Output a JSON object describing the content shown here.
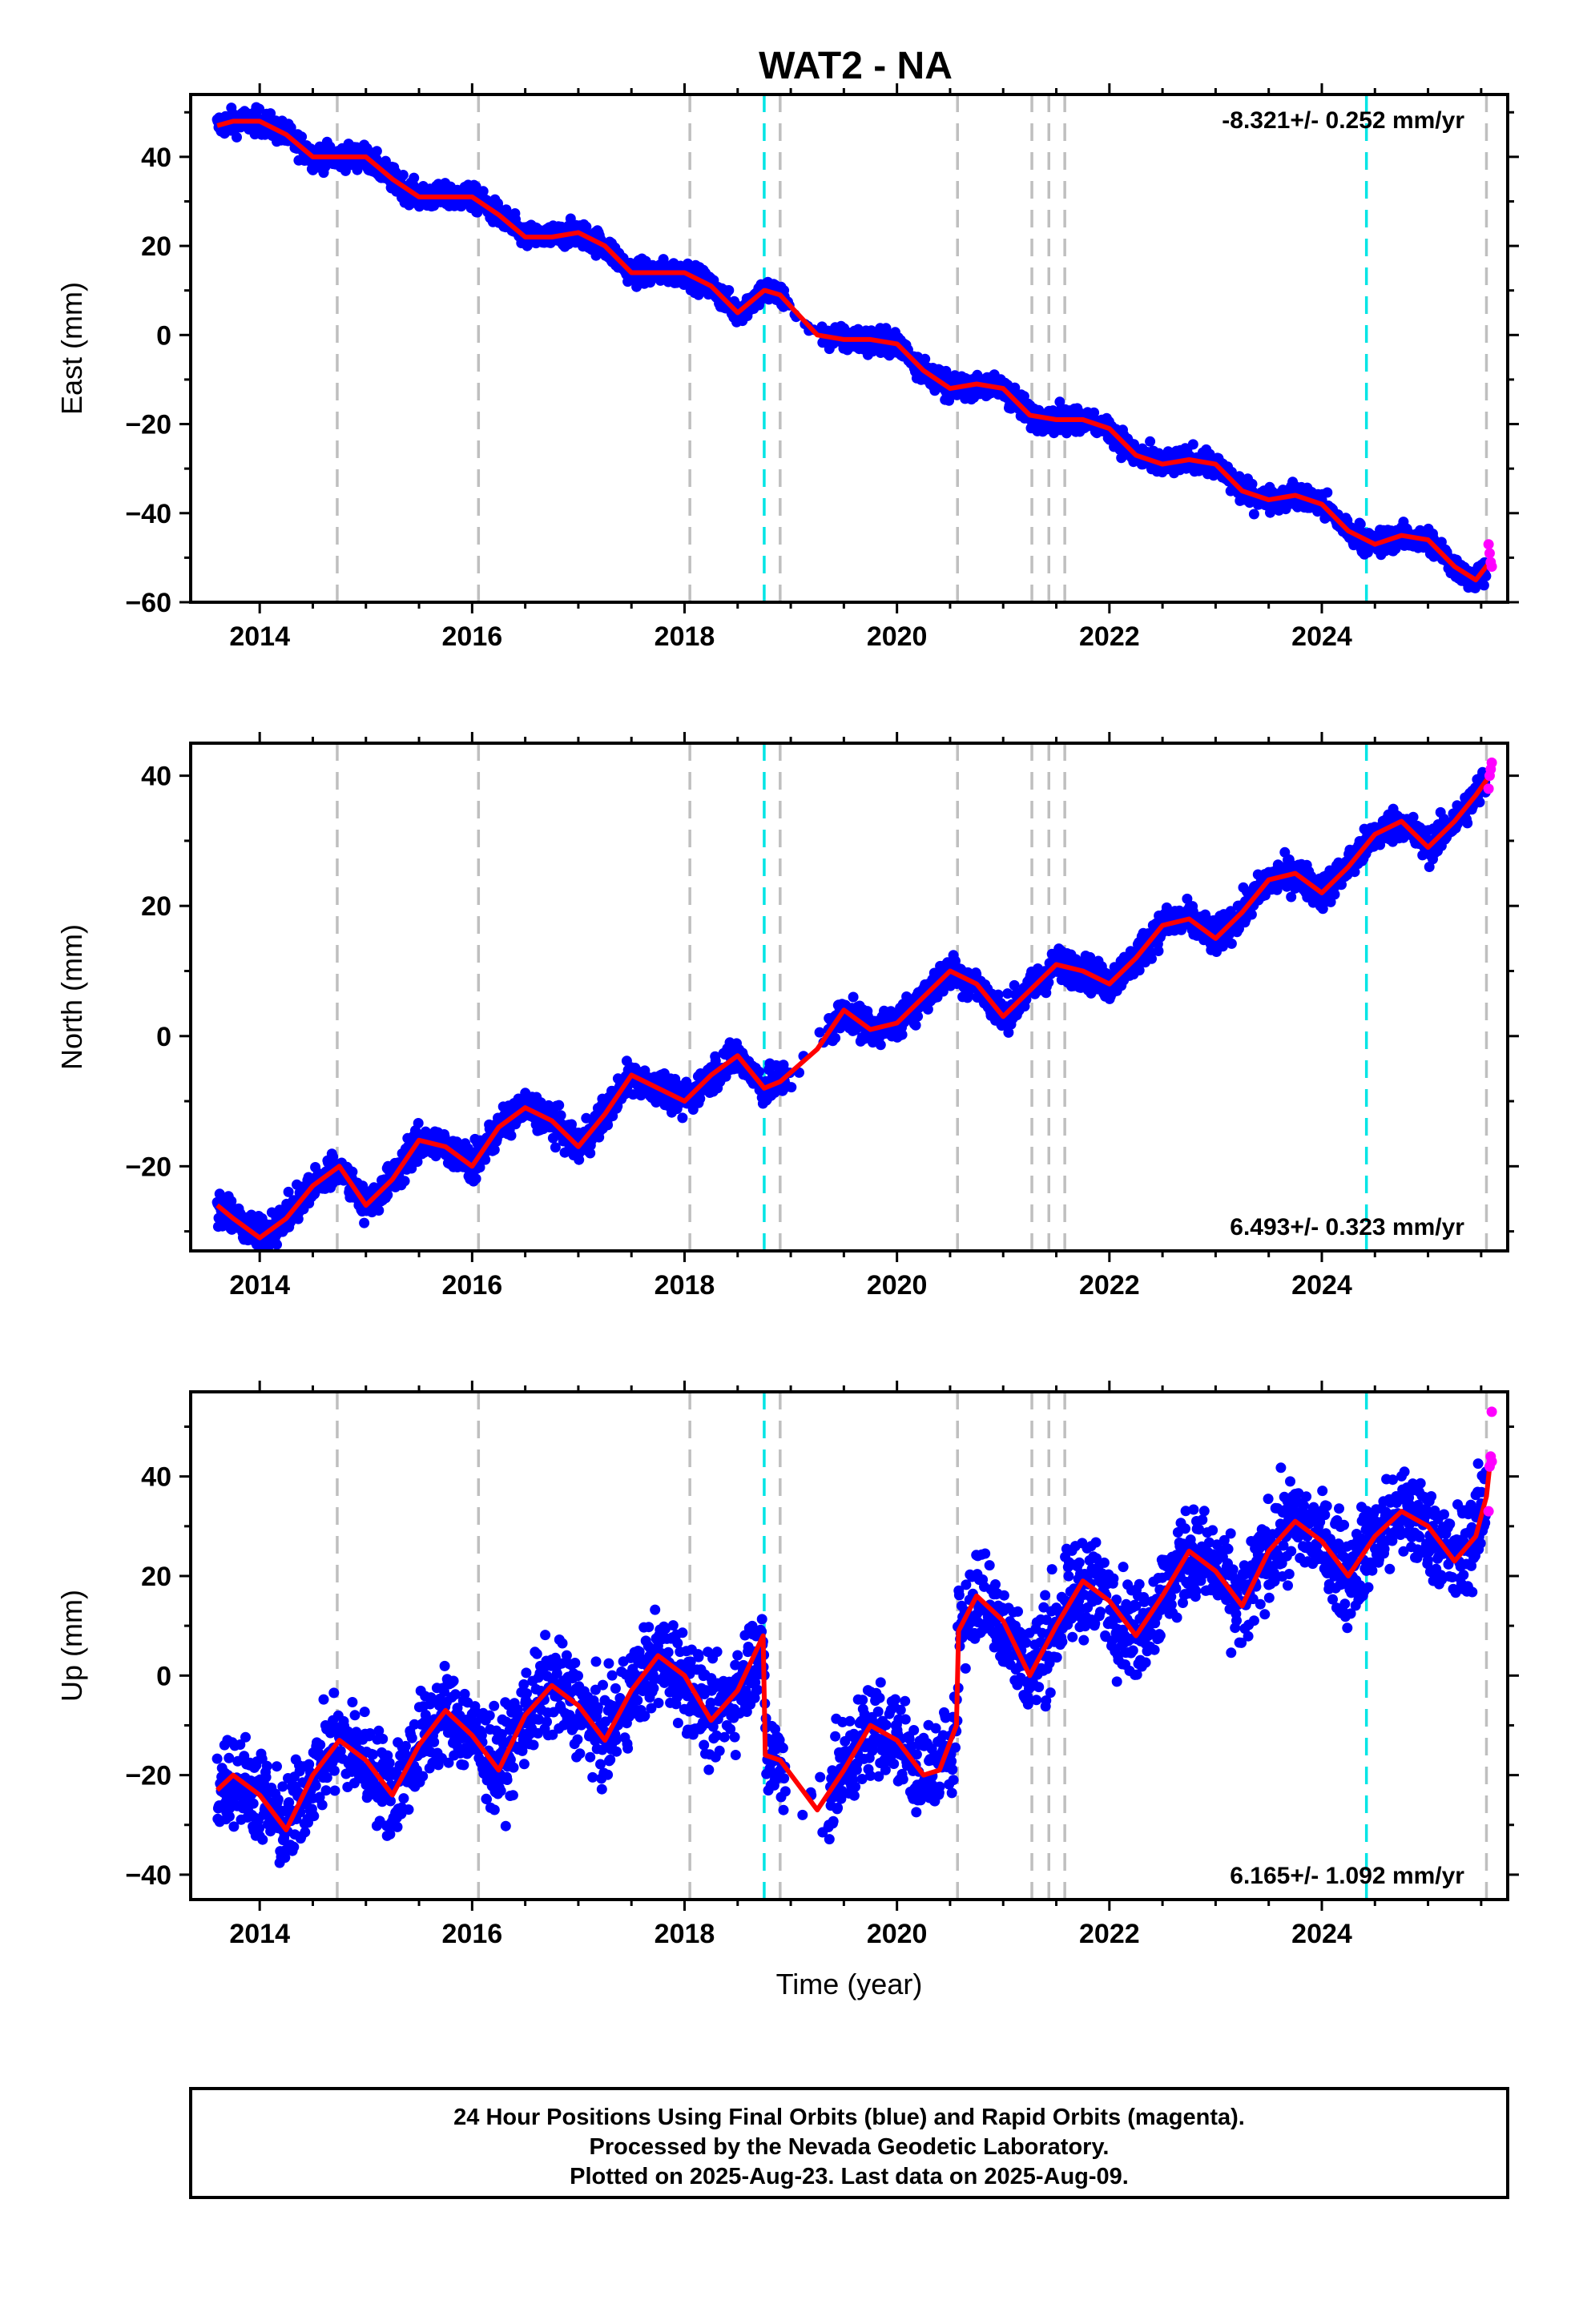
{
  "colors": {
    "final_orbits": "#0000ff",
    "rapid_orbits": "#ff00ff",
    "model_fit": "#ff0000",
    "equipment_change": "#bfbfbf",
    "earthquake": "#00e5e5"
  },
  "footer": {
    "line1": "24 Hour Positions Using Final Orbits (blue) and Rapid Orbits (magenta).",
    "line2": "Processed by the Nevada Geodetic Laboratory.",
    "line3": "Plotted on 2025-Aug-23. Last data on 2025-Aug-09."
  },
  "chart_data": [
    {
      "type": "scatter",
      "title": "WAT2 - NA",
      "xlabel": "",
      "ylabel": "East (mm)",
      "xlim": [
        2013.35,
        2025.75
      ],
      "ylim": [
        -60,
        54
      ],
      "xticks": [
        2014,
        2016,
        2018,
        2020,
        2022,
        2024
      ],
      "yticks": [
        -60,
        -40,
        -20,
        0,
        20,
        40
      ],
      "grid": false,
      "rate_text": "-8.321+/- 0.252 mm/yr",
      "rate_position": "top-right",
      "vlines_gray": [
        2014.73,
        2016.06,
        2018.05,
        2018.9,
        2020.57,
        2021.27,
        2021.43,
        2021.58,
        2025.55
      ],
      "vlines_cyan": [
        2018.75,
        2024.42
      ],
      "model": {
        "x": [
          2013.6,
          2013.75,
          2014.0,
          2014.25,
          2014.5,
          2014.75,
          2015.0,
          2015.25,
          2015.5,
          2015.75,
          2016.0,
          2016.25,
          2016.5,
          2016.75,
          2017.0,
          2017.25,
          2017.5,
          2017.75,
          2018.0,
          2018.25,
          2018.5,
          2018.75,
          2018.76,
          2018.9,
          2019.25,
          2019.5,
          2019.75,
          2020.0,
          2020.25,
          2020.5,
          2020.75,
          2021.0,
          2021.25,
          2021.5,
          2021.75,
          2022.0,
          2022.25,
          2022.5,
          2022.75,
          2023.0,
          2023.25,
          2023.5,
          2023.75,
          2024.0,
          2024.25,
          2024.5,
          2024.75,
          2025.0,
          2025.25,
          2025.45,
          2025.58
        ],
        "y": [
          47,
          48,
          48,
          45,
          40,
          40,
          40,
          35,
          31,
          31,
          31,
          27,
          22,
          22,
          23,
          20,
          14,
          14,
          14,
          11,
          5,
          10,
          10,
          9,
          0,
          -1,
          -1,
          -2,
          -8,
          -12,
          -11,
          -12,
          -18,
          -19,
          -19,
          -21,
          -27,
          -29,
          -28,
          -29,
          -35,
          -37,
          -36,
          -38,
          -44,
          -47,
          -45,
          -46,
          -52,
          -55,
          -51
        ]
      },
      "rapid_points": {
        "x": [
          2025.57,
          2025.58,
          2025.59,
          2025.6
        ],
        "y": [
          -47,
          -49,
          -51,
          -52
        ]
      },
      "scatter_spread": 1.6,
      "point_count": 2600
    },
    {
      "type": "scatter",
      "title": "",
      "xlabel": "",
      "ylabel": "North (mm)",
      "xlim": [
        2013.35,
        2025.75
      ],
      "ylim": [
        -33,
        45
      ],
      "xticks": [
        2014,
        2016,
        2018,
        2020,
        2022,
        2024
      ],
      "yticks": [
        -20,
        0,
        20,
        40
      ],
      "grid": false,
      "rate_text": "6.493+/- 0.323 mm/yr",
      "rate_position": "bottom-right",
      "vlines_gray": [
        2014.73,
        2016.06,
        2018.05,
        2018.9,
        2020.57,
        2021.27,
        2021.43,
        2021.58,
        2025.55
      ],
      "vlines_cyan": [
        2018.75,
        2024.42
      ],
      "model": {
        "x": [
          2013.6,
          2013.75,
          2014.0,
          2014.25,
          2014.5,
          2014.75,
          2015.0,
          2015.25,
          2015.5,
          2015.75,
          2016.0,
          2016.25,
          2016.5,
          2016.75,
          2017.0,
          2017.25,
          2017.5,
          2017.75,
          2018.0,
          2018.25,
          2018.5,
          2018.75,
          2018.9,
          2019.25,
          2019.5,
          2019.75,
          2020.0,
          2020.25,
          2020.5,
          2020.75,
          2021.0,
          2021.25,
          2021.5,
          2021.75,
          2022.0,
          2022.25,
          2022.5,
          2022.75,
          2023.0,
          2023.25,
          2023.5,
          2023.75,
          2024.0,
          2024.25,
          2024.5,
          2024.75,
          2025.0,
          2025.25,
          2025.45,
          2025.58
        ],
        "y": [
          -26,
          -28,
          -31,
          -28,
          -23,
          -20,
          -26,
          -22,
          -16,
          -17,
          -20,
          -14,
          -11,
          -13,
          -17,
          -12,
          -6,
          -8,
          -10,
          -6,
          -3,
          -8,
          -7,
          -2,
          4,
          1,
          2,
          6,
          10,
          8,
          3,
          7,
          11,
          10,
          8,
          12,
          17,
          18,
          15,
          19,
          24,
          25,
          22,
          26,
          31,
          33,
          29,
          33,
          37,
          40
        ]
      },
      "rapid_points": {
        "x": [
          2025.57,
          2025.58,
          2025.59,
          2025.6
        ],
        "y": [
          38,
          40,
          41,
          42
        ]
      },
      "scatter_spread": 1.5,
      "point_count": 2600
    },
    {
      "type": "scatter",
      "title": "",
      "xlabel": "Time (year)",
      "ylabel": "Up (mm)",
      "xlim": [
        2013.35,
        2025.75
      ],
      "ylim": [
        -45,
        57
      ],
      "xticks": [
        2014,
        2016,
        2018,
        2020,
        2022,
        2024
      ],
      "yticks": [
        -40,
        -20,
        0,
        20,
        40
      ],
      "grid": false,
      "rate_text": "6.165+/- 1.092 mm/yr",
      "rate_position": "bottom-right",
      "vlines_gray": [
        2014.73,
        2016.06,
        2018.05,
        2018.9,
        2020.57,
        2021.27,
        2021.43,
        2021.58,
        2025.55
      ],
      "vlines_cyan": [
        2018.75,
        2024.42
      ],
      "model": {
        "x": [
          2013.6,
          2013.75,
          2014.0,
          2014.25,
          2014.5,
          2014.75,
          2015.0,
          2015.25,
          2015.5,
          2015.75,
          2016.0,
          2016.25,
          2016.5,
          2016.75,
          2017.0,
          2017.25,
          2017.5,
          2017.75,
          2018.0,
          2018.25,
          2018.5,
          2018.74,
          2018.76,
          2018.9,
          2019.25,
          2019.5,
          2019.75,
          2020.0,
          2020.25,
          2020.4,
          2020.56,
          2020.58,
          2020.75,
          2021.0,
          2021.25,
          2021.5,
          2021.75,
          2022.0,
          2022.25,
          2022.5,
          2022.75,
          2023.0,
          2023.25,
          2023.5,
          2023.75,
          2024.0,
          2024.25,
          2024.5,
          2024.75,
          2025.0,
          2025.25,
          2025.45,
          2025.55,
          2025.58
        ],
        "y": [
          -23,
          -20,
          -24,
          -31,
          -20,
          -13,
          -17,
          -24,
          -14,
          -7,
          -12,
          -19,
          -8,
          -2,
          -6,
          -13,
          -3,
          4,
          0,
          -9,
          -3,
          8,
          -16,
          -17,
          -27,
          -19,
          -10,
          -13,
          -20,
          -19,
          -10,
          9,
          16,
          11,
          0,
          10,
          19,
          15,
          8,
          16,
          25,
          21,
          14,
          25,
          31,
          27,
          20,
          28,
          33,
          30,
          23,
          28,
          36,
          42
        ]
      },
      "rapid_points": {
        "x": [
          2025.57,
          2025.58,
          2025.59,
          2025.6,
          2025.6
        ],
        "y": [
          33,
          42,
          44,
          53,
          43
        ]
      },
      "scatter_spread": 5.5,
      "point_count": 2600
    }
  ]
}
